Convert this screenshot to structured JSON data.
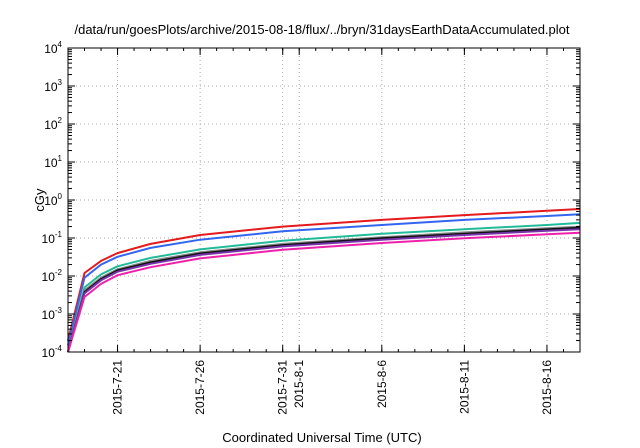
{
  "chart_data": {
    "type": "line",
    "title": "/data/run/goesPlots/archive/2015-08-18/flux/../bryn/31daysEarthDataAccumulated.plot",
    "xlabel": "Coordinated Universal Time (UTC)",
    "ylabel": "cGy",
    "yscale": "log",
    "ylim": [
      0.0001,
      10000
    ],
    "xlim": [
      "2015-07-18",
      "2015-08-18"
    ],
    "grid": true,
    "y_ticks": [
      {
        "base": "10",
        "exp": "-4",
        "value": 0.0001
      },
      {
        "base": "10",
        "exp": "-3",
        "value": 0.001
      },
      {
        "base": "10",
        "exp": "-2",
        "value": 0.01
      },
      {
        "base": "10",
        "exp": "-1",
        "value": 0.1
      },
      {
        "base": "10",
        "exp": "0",
        "value": 1
      },
      {
        "base": "10",
        "exp": "1",
        "value": 10
      },
      {
        "base": "10",
        "exp": "2",
        "value": 100
      },
      {
        "base": "10",
        "exp": "3",
        "value": 1000
      },
      {
        "base": "10",
        "exp": "4",
        "value": 10000
      }
    ],
    "x_ticks": [
      {
        "date": "2015-07-21",
        "label": "2015-7-21"
      },
      {
        "date": "2015-07-26",
        "label": "2015-7-26"
      },
      {
        "date": "2015-07-31",
        "label": "2015-7-31"
      },
      {
        "date": "2015-08-01",
        "label": "2015-8-1"
      },
      {
        "date": "2015-08-06",
        "label": "2015-8-6"
      },
      {
        "date": "2015-08-11",
        "label": "2015-8-11"
      },
      {
        "date": "2015-08-16",
        "label": "2015-8-16"
      }
    ],
    "series": [
      {
        "color": "#e41a1c",
        "x": [
          "2015-07-18",
          "2015-07-19",
          "2015-07-20",
          "2015-07-21",
          "2015-07-23",
          "2015-07-26",
          "2015-07-31",
          "2015-08-06",
          "2015-08-11",
          "2015-08-16",
          "2015-08-18"
        ],
        "y": [
          0.0002,
          0.012,
          0.025,
          0.04,
          0.07,
          0.12,
          0.2,
          0.3,
          0.4,
          0.52,
          0.58
        ]
      },
      {
        "color": "#3366ee",
        "x": [
          "2015-07-18",
          "2015-07-19",
          "2015-07-20",
          "2015-07-21",
          "2015-07-23",
          "2015-07-26",
          "2015-07-31",
          "2015-08-06",
          "2015-08-11",
          "2015-08-16",
          "2015-08-18"
        ],
        "y": [
          0.00015,
          0.009,
          0.02,
          0.032,
          0.055,
          0.09,
          0.15,
          0.22,
          0.3,
          0.38,
          0.42
        ]
      },
      {
        "color": "#22bb99",
        "x": [
          "2015-07-18",
          "2015-07-19",
          "2015-07-20",
          "2015-07-21",
          "2015-07-23",
          "2015-07-26",
          "2015-07-31",
          "2015-08-06",
          "2015-08-11",
          "2015-08-16",
          "2015-08-18"
        ],
        "y": [
          0.0001,
          0.005,
          0.011,
          0.018,
          0.03,
          0.05,
          0.085,
          0.13,
          0.17,
          0.22,
          0.25
        ]
      },
      {
        "color": "#888888",
        "x": [
          "2015-07-18",
          "2015-07-19",
          "2015-07-20",
          "2015-07-21",
          "2015-07-23",
          "2015-07-26",
          "2015-07-31",
          "2015-08-06",
          "2015-08-11",
          "2015-08-16",
          "2015-08-18"
        ],
        "y": [
          0.0001,
          0.0042,
          0.009,
          0.015,
          0.025,
          0.042,
          0.07,
          0.105,
          0.14,
          0.18,
          0.2
        ]
      },
      {
        "color": "#111111",
        "x": [
          "2015-07-18",
          "2015-07-19",
          "2015-07-20",
          "2015-07-21",
          "2015-07-23",
          "2015-07-26",
          "2015-07-31",
          "2015-08-06",
          "2015-08-11",
          "2015-08-16",
          "2015-08-18"
        ],
        "y": [
          0.0001,
          0.0038,
          0.0083,
          0.014,
          0.023,
          0.039,
          0.065,
          0.098,
          0.13,
          0.168,
          0.185
        ]
      },
      {
        "color": "#7733aa",
        "x": [
          "2015-07-18",
          "2015-07-19",
          "2015-07-20",
          "2015-07-21",
          "2015-07-23",
          "2015-07-26",
          "2015-07-31",
          "2015-08-06",
          "2015-08-11",
          "2015-08-16",
          "2015-08-18"
        ],
        "y": [
          0.0001,
          0.0035,
          0.0077,
          0.013,
          0.021,
          0.036,
          0.06,
          0.09,
          0.12,
          0.155,
          0.17
        ]
      },
      {
        "color": "#ee22aa",
        "x": [
          "2015-07-18",
          "2015-07-19",
          "2015-07-20",
          "2015-07-21",
          "2015-07-23",
          "2015-07-26",
          "2015-07-31",
          "2015-08-06",
          "2015-08-11",
          "2015-08-16",
          "2015-08-18"
        ],
        "y": [
          0.0001,
          0.0028,
          0.0062,
          0.0105,
          0.017,
          0.029,
          0.049,
          0.074,
          0.098,
          0.125,
          0.138
        ]
      }
    ]
  }
}
